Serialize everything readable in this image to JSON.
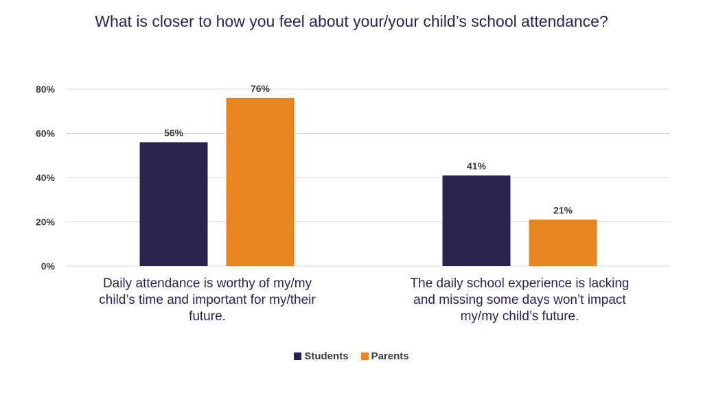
{
  "chart_data": {
    "type": "bar",
    "title": "What is closer to how you feel about your/your child’s school attendance?",
    "categories": [
      "Daily attendance is worthy of my/my child’s time and important for my/their future.",
      "The daily school experience is lacking and missing some days won’t impact my/my child’s future."
    ],
    "series": [
      {
        "name": "Students",
        "values": [
          56,
          41
        ],
        "labels": [
          "56%",
          "41%"
        ],
        "color": "#2a2350"
      },
      {
        "name": "Parents",
        "values": [
          76,
          21
        ],
        "labels": [
          "76%",
          "21%"
        ],
        "color": "#e8851f"
      }
    ],
    "yticks": [
      {
        "value": 0,
        "label": "0%"
      },
      {
        "value": 20,
        "label": "20%"
      },
      {
        "value": 40,
        "label": "40%"
      },
      {
        "value": 60,
        "label": "60%"
      },
      {
        "value": 80,
        "label": "80%"
      }
    ],
    "ylim": [
      0,
      80
    ],
    "grid": true,
    "legend_position": "bottom"
  }
}
